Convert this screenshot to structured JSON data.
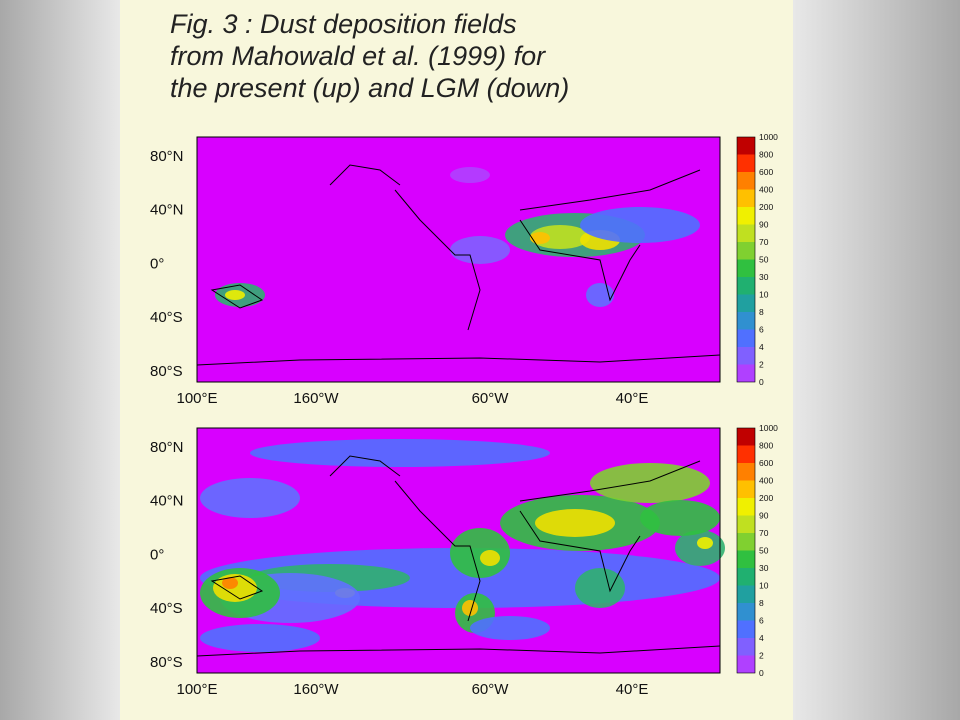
{
  "title": [
    "Fig. 3 : Dust deposition fields",
    "from Mahowald et al. (1999) for",
    "the present (up) and LGM (down)"
  ],
  "maps": [
    {
      "lat_labels": [
        "80°N",
        "40°N",
        "0°",
        "40°S",
        "80°S"
      ],
      "lon_labels": [
        "100°E",
        "160°W",
        "60°W",
        "40°E"
      ],
      "colorbar_labels": [
        "1000",
        "800",
        "600",
        "400",
        "200",
        "90",
        "70",
        "50",
        "30",
        "10",
        "8",
        "6",
        "4",
        "2",
        "0"
      ]
    },
    {
      "lat_labels": [
        "80°N",
        "40°N",
        "0°",
        "40°S",
        "80°S"
      ],
      "lon_labels": [
        "100°E",
        "160°W",
        "60°W",
        "40°E"
      ],
      "colorbar_labels": [
        "1000",
        "800",
        "600",
        "400",
        "200",
        "90",
        "70",
        "50",
        "30",
        "10",
        "8",
        "6",
        "4",
        "2",
        "0"
      ]
    }
  ]
}
